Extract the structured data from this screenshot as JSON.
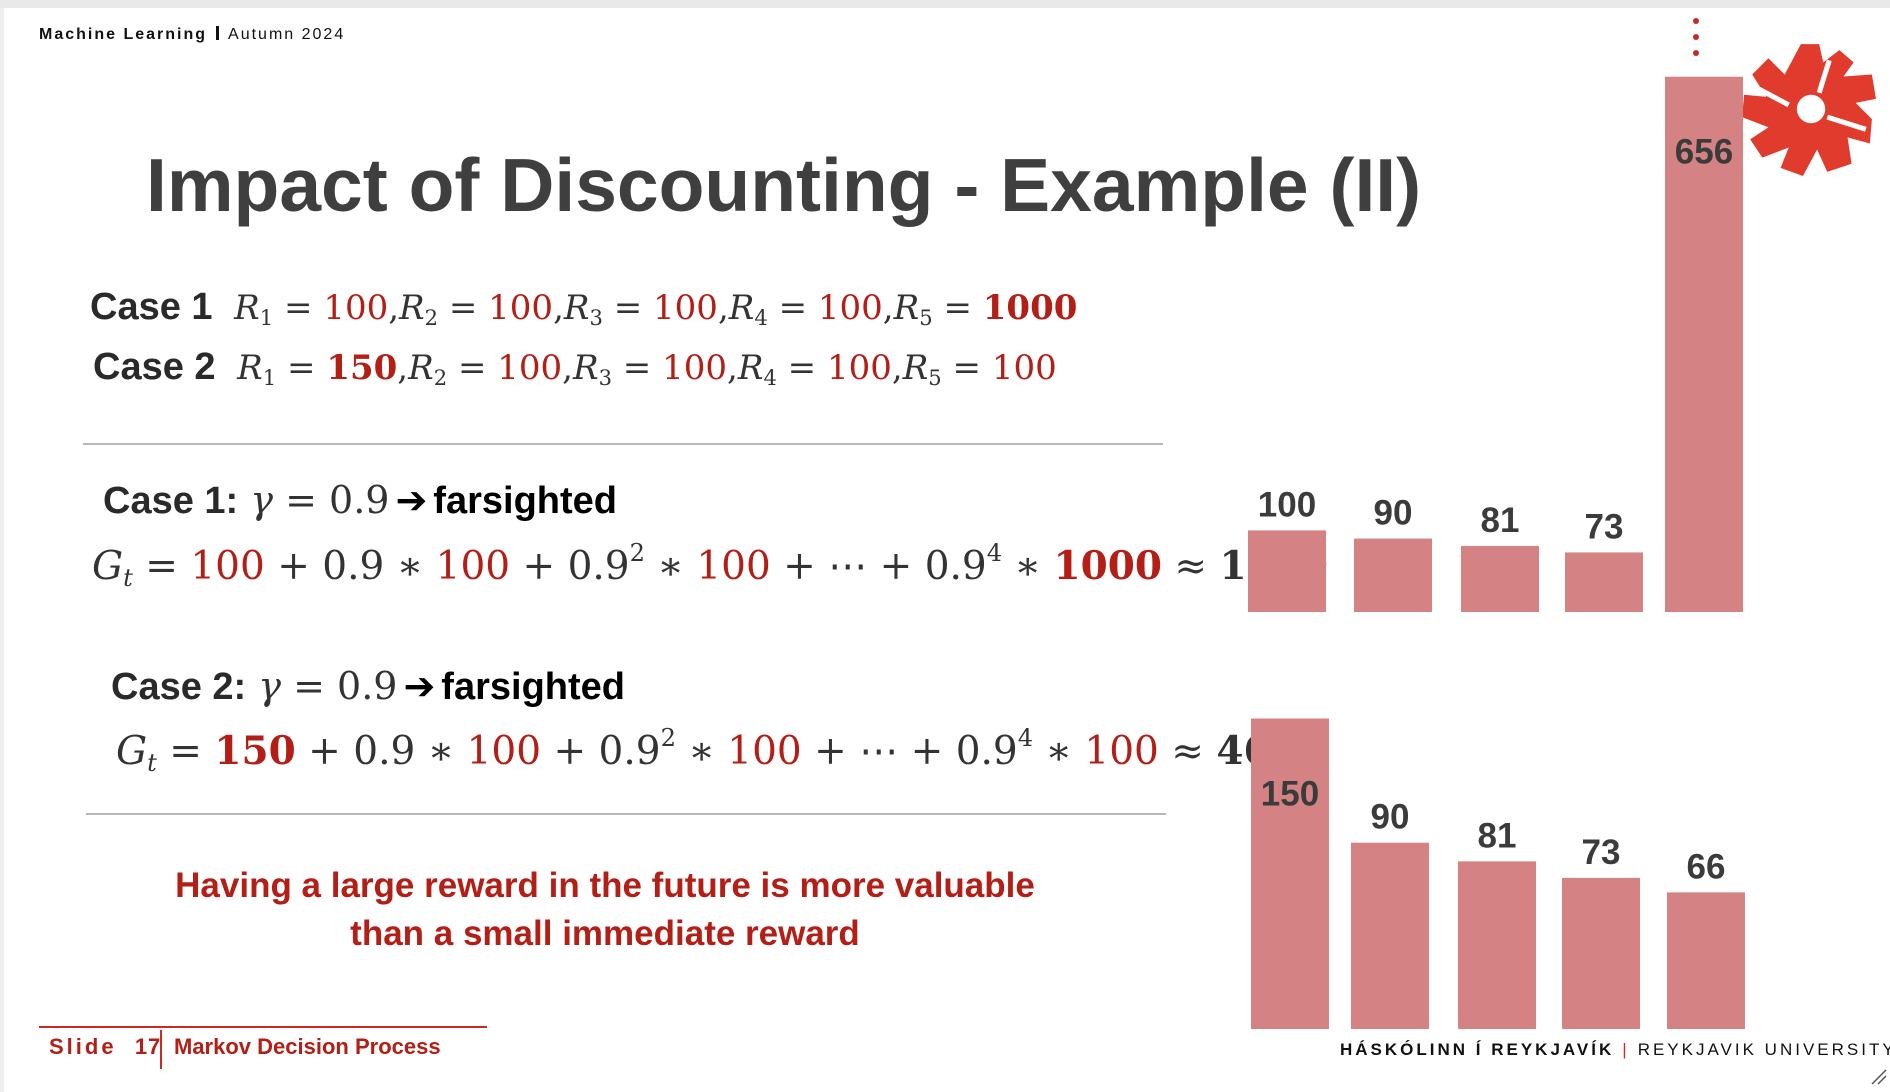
{
  "header": {
    "course": "Machine Learning",
    "term": "Autumn 2024"
  },
  "title": "Impact of Discounting - Example (II)",
  "cases": {
    "case1": {
      "label": "Case 1",
      "rewards": [
        {
          "sym": "R",
          "sub": "1",
          "val": "100",
          "bold": false
        },
        {
          "sym": "R",
          "sub": "2",
          "val": "100",
          "bold": false
        },
        {
          "sym": "R",
          "sub": "3",
          "val": "100",
          "bold": false
        },
        {
          "sym": "R",
          "sub": "4",
          "val": "100",
          "bold": false
        },
        {
          "sym": "R",
          "sub": "5",
          "val": "1000",
          "bold": true
        }
      ]
    },
    "case2": {
      "label": "Case 2",
      "rewards": [
        {
          "sym": "R",
          "sub": "1",
          "val": "150",
          "bold": true
        },
        {
          "sym": "R",
          "sub": "2",
          "val": "100",
          "bold": false
        },
        {
          "sym": "R",
          "sub": "3",
          "val": "100",
          "bold": false
        },
        {
          "sym": "R",
          "sub": "4",
          "val": "100",
          "bold": false
        },
        {
          "sym": "R",
          "sub": "5",
          "val": "100",
          "bold": false
        }
      ]
    }
  },
  "section1": {
    "label": "Case 1:",
    "gamma_sym": "γ",
    "gamma_val": "0.9",
    "verdict": "farsighted",
    "eq": {
      "lhs": "G",
      "lhs_sub": "t",
      "t0": "100",
      "coef": "0.9",
      "exp2": "2",
      "exp4": "4",
      "t1": "100",
      "t2": "100",
      "t4": "1000",
      "result": "1000"
    }
  },
  "section2": {
    "label": "Case 2:",
    "gamma_sym": "γ",
    "gamma_val": "0.9",
    "verdict": "farsighted",
    "eq": {
      "lhs": "G",
      "lhs_sub": "t",
      "t0": "150",
      "coef": "0.9",
      "exp2": "2",
      "exp4": "4",
      "t1": "100",
      "t2": "100",
      "t4": "100",
      "result": "460"
    }
  },
  "takeaway": {
    "line1": "Having a large reward in the future is more valuable",
    "line2": "than a small immediate reward"
  },
  "footer": {
    "slide_label": "Slide",
    "slide_number": "17",
    "topic": "Markov Decision Process",
    "university_is": "HÁSKÓLINN Í REYKJAVÍK",
    "university_en": "REYKJAVIK UNIVERSITY"
  },
  "colors": {
    "accent": "#cc2a1f",
    "bar": "#d48283",
    "text_red": "#b31e16"
  },
  "chart_data": [
    {
      "type": "bar",
      "series": [
        {
          "values": [
            100,
            90,
            81,
            73,
            656
          ]
        }
      ],
      "data_labels": [
        "100",
        "90",
        "81",
        "73",
        "656"
      ]
    },
    {
      "type": "bar",
      "series": [
        {
          "values": [
            150,
            90,
            81,
            73,
            66
          ]
        }
      ],
      "data_labels": [
        "150",
        "90",
        "81",
        "73",
        "66"
      ]
    }
  ]
}
